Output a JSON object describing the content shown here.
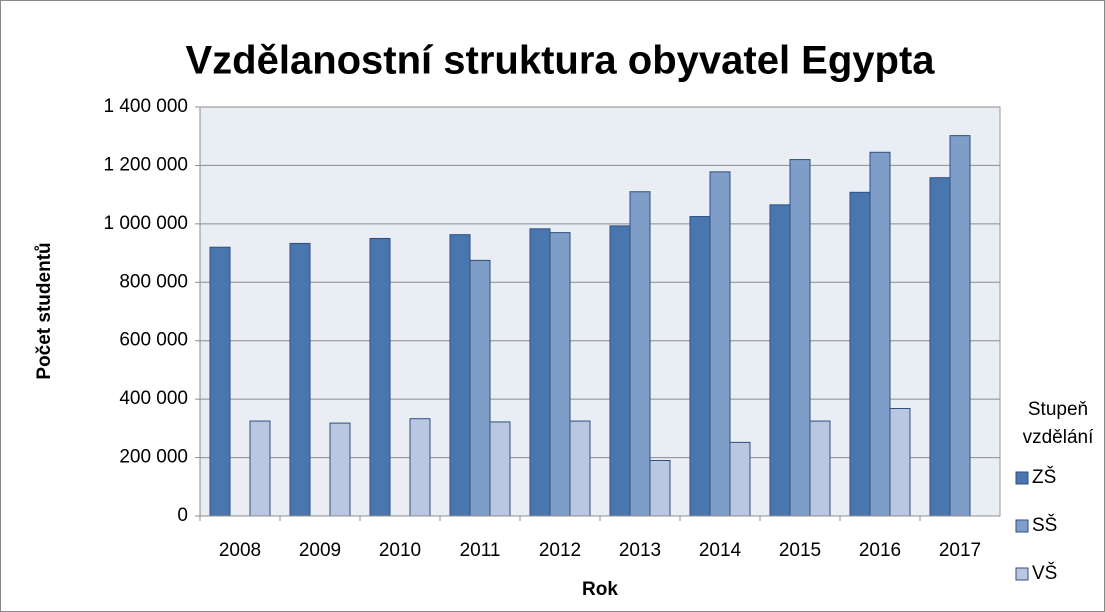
{
  "chart_data": {
    "type": "bar",
    "title": "Vzdělanostní struktura obyvatel Egypta",
    "x_label": "Rok",
    "y_label": "Počet studentů",
    "legend_title": "Stupeň vzdělání",
    "legend_position": "right",
    "categories": [
      "2008",
      "2009",
      "2010",
      "2011",
      "2012",
      "2013",
      "2014",
      "2015",
      "2016",
      "2017"
    ],
    "series": [
      {
        "name": "ZŠ",
        "color": "#4a76b0",
        "values": [
          920000,
          933000,
          950000,
          963000,
          983000,
          993000,
          1025000,
          1065000,
          1108000,
          1158000
        ]
      },
      {
        "name": "SŠ",
        "color": "#7f9dc9",
        "values": [
          null,
          null,
          null,
          875000,
          970000,
          1110000,
          1178000,
          1220000,
          1245000,
          1302000
        ]
      },
      {
        "name": "VŠ",
        "color": "#b9c8e0",
        "values": [
          325000,
          318000,
          333000,
          322000,
          325000,
          190000,
          252000,
          325000,
          368000,
          null
        ]
      }
    ],
    "ylim": [
      0,
      1400000
    ],
    "yticks": [
      0,
      {
        "value": 200000,
        "label": "200 000"
      },
      {
        "value": 400000,
        "label": "400 000"
      },
      {
        "value": 600000,
        "label": "600 000"
      },
      {
        "value": 800000,
        "label": "800 000"
      },
      {
        "value": 1000000,
        "label": "1 000 000"
      },
      {
        "value": 1200000,
        "label": "1 200 000"
      },
      {
        "value": 1400000,
        "label": "1 400 000"
      }
    ],
    "grid": true
  }
}
